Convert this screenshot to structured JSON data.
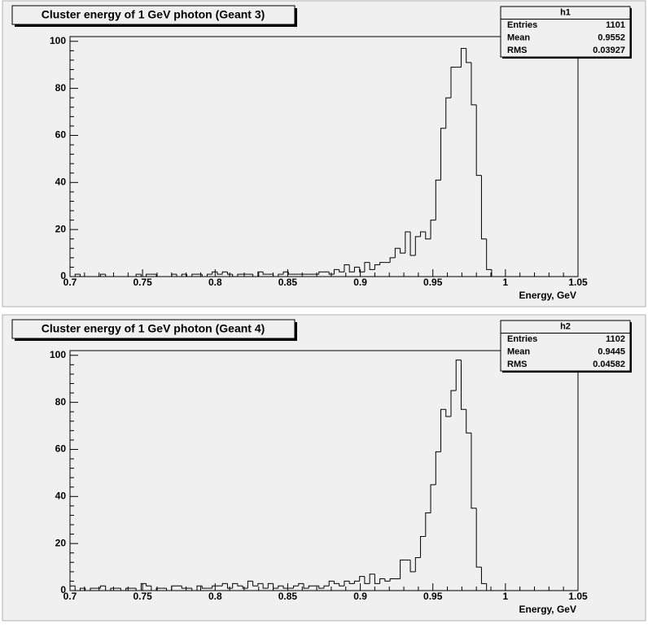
{
  "chart_data": [
    {
      "type": "histogram",
      "title": "Cluster energy of 1 GeV photon (Geant 3)",
      "xlabel": "Energy, GeV",
      "color": "#000000",
      "bins": [
        0.7,
        0.7035,
        0.707,
        0.7105,
        0.714,
        0.7175,
        0.721,
        0.7245,
        0.728,
        0.7315,
        0.735,
        0.7385,
        0.742,
        0.7455,
        0.749,
        0.7525,
        0.756,
        0.7595,
        0.763,
        0.7665,
        0.77,
        0.7735,
        0.777,
        0.7805,
        0.784,
        0.7875,
        0.791,
        0.7945,
        0.798,
        0.8015,
        0.805,
        0.8085,
        0.812,
        0.8155,
        0.819,
        0.8225,
        0.826,
        0.8295,
        0.833,
        0.8365,
        0.84,
        0.8435,
        0.847,
        0.8505,
        0.854,
        0.8575,
        0.861,
        0.8645,
        0.868,
        0.8715,
        0.875,
        0.8785,
        0.882,
        0.8855,
        0.889,
        0.8925,
        0.896,
        0.8995,
        0.903,
        0.9065,
        0.91,
        0.9135,
        0.917,
        0.9205,
        0.924,
        0.9275,
        0.931,
        0.9345,
        0.938,
        0.9415,
        0.945,
        0.9485,
        0.952,
        0.9555,
        0.959,
        0.9625,
        0.966,
        0.9695,
        0.973,
        0.9765,
        0.98,
        0.9835,
        0.987,
        0.9905,
        0.994,
        0.9975,
        1.001,
        1.0045,
        1.008,
        1.0115,
        1.015,
        1.0185,
        1.022,
        1.0255,
        1.029,
        1.0325,
        1.036,
        1.0395,
        1.043,
        1.0465,
        1.05
      ],
      "values": [
        0,
        1,
        0,
        0,
        0,
        0,
        1,
        0,
        0,
        0,
        0,
        0,
        0,
        1,
        0,
        1,
        1,
        0,
        0,
        0,
        1,
        0,
        1,
        0,
        1,
        1,
        0,
        1,
        2,
        1,
        2,
        1,
        0,
        1,
        1,
        1,
        0,
        2,
        1,
        1,
        0,
        1,
        2,
        1,
        1,
        1,
        1,
        1,
        1,
        2,
        2,
        1,
        3,
        2,
        5,
        2,
        4,
        2,
        6,
        3,
        5,
        6,
        6,
        8,
        12,
        10,
        19,
        9,
        17,
        19,
        16,
        24,
        41,
        63,
        76,
        89,
        89,
        97,
        91,
        73,
        43,
        16,
        3,
        0,
        0,
        0,
        0,
        0,
        0,
        0,
        0,
        0,
        0,
        0,
        0,
        0,
        0,
        0,
        0,
        0
      ],
      "xlim": [
        0.7,
        1.05
      ],
      "xticks": [
        0.7,
        0.75,
        0.8,
        0.85,
        0.9,
        0.95,
        1,
        1.05
      ],
      "ylim": [
        0,
        102
      ],
      "yticks": [
        0,
        20,
        40,
        60,
        80,
        100
      ],
      "stats": {
        "name": "h1",
        "rows": [
          {
            "label": "Entries",
            "value": 1101
          },
          {
            "label": "Mean",
            "value": 0.9552
          },
          {
            "label": "RMS",
            "value": 0.03927
          }
        ]
      }
    },
    {
      "type": "histogram",
      "title": "Cluster energy of 1 GeV photon (Geant 4)",
      "xlabel": "Energy, GeV",
      "color": "#000000",
      "bins": [
        0.7,
        0.7035,
        0.707,
        0.7105,
        0.714,
        0.7175,
        0.721,
        0.7245,
        0.728,
        0.7315,
        0.735,
        0.7385,
        0.742,
        0.7455,
        0.749,
        0.7525,
        0.756,
        0.7595,
        0.763,
        0.7665,
        0.77,
        0.7735,
        0.777,
        0.7805,
        0.784,
        0.7875,
        0.791,
        0.7945,
        0.798,
        0.8015,
        0.805,
        0.8085,
        0.812,
        0.8155,
        0.819,
        0.8225,
        0.826,
        0.8295,
        0.833,
        0.8365,
        0.84,
        0.8435,
        0.847,
        0.8505,
        0.854,
        0.8575,
        0.861,
        0.8645,
        0.868,
        0.8715,
        0.875,
        0.8785,
        0.882,
        0.8855,
        0.889,
        0.8925,
        0.896,
        0.8995,
        0.903,
        0.9065,
        0.91,
        0.9135,
        0.917,
        0.9205,
        0.924,
        0.9275,
        0.931,
        0.9345,
        0.938,
        0.9415,
        0.945,
        0.9485,
        0.952,
        0.9555,
        0.959,
        0.9625,
        0.966,
        0.9695,
        0.973,
        0.9765,
        0.98,
        0.9835,
        0.987,
        0.9905,
        0.994,
        0.9975,
        1.001,
        1.0045,
        1.008,
        1.0115,
        1.015,
        1.0185,
        1.022,
        1.0255,
        1.029,
        1.0325,
        1.036,
        1.0395,
        1.043,
        1.0465,
        1.05
      ],
      "values": [
        2,
        0,
        1,
        0,
        1,
        1,
        2,
        0,
        1,
        1,
        0,
        1,
        1,
        0,
        3,
        2,
        0,
        1,
        1,
        0,
        2,
        2,
        1,
        1,
        0,
        2,
        1,
        1,
        2,
        2,
        3,
        1,
        3,
        2,
        1,
        4,
        2,
        3,
        1,
        3,
        1,
        2,
        1,
        1,
        2,
        3,
        1,
        2,
        2,
        1,
        2,
        4,
        3,
        2,
        4,
        3,
        4,
        6,
        3,
        7,
        3,
        5,
        4,
        5,
        5,
        13,
        13,
        8,
        14,
        23,
        33,
        45,
        59,
        77,
        74,
        85,
        98,
        77,
        67,
        35,
        10,
        3,
        0,
        0,
        0,
        0,
        0,
        0,
        0,
        0,
        0,
        0,
        0,
        0,
        0,
        0,
        0,
        0,
        0,
        0
      ],
      "xlim": [
        0.7,
        1.05
      ],
      "xticks": [
        0.7,
        0.75,
        0.8,
        0.85,
        0.9,
        0.95,
        1,
        1.05
      ],
      "ylim": [
        0,
        102
      ],
      "yticks": [
        0,
        20,
        40,
        60,
        80,
        100
      ],
      "stats": {
        "name": "h2",
        "rows": [
          {
            "label": "Entries",
            "value": 1102
          },
          {
            "label": "Mean",
            "value": 0.9445
          },
          {
            "label": "RMS",
            "value": 0.04582
          }
        ]
      }
    }
  ]
}
